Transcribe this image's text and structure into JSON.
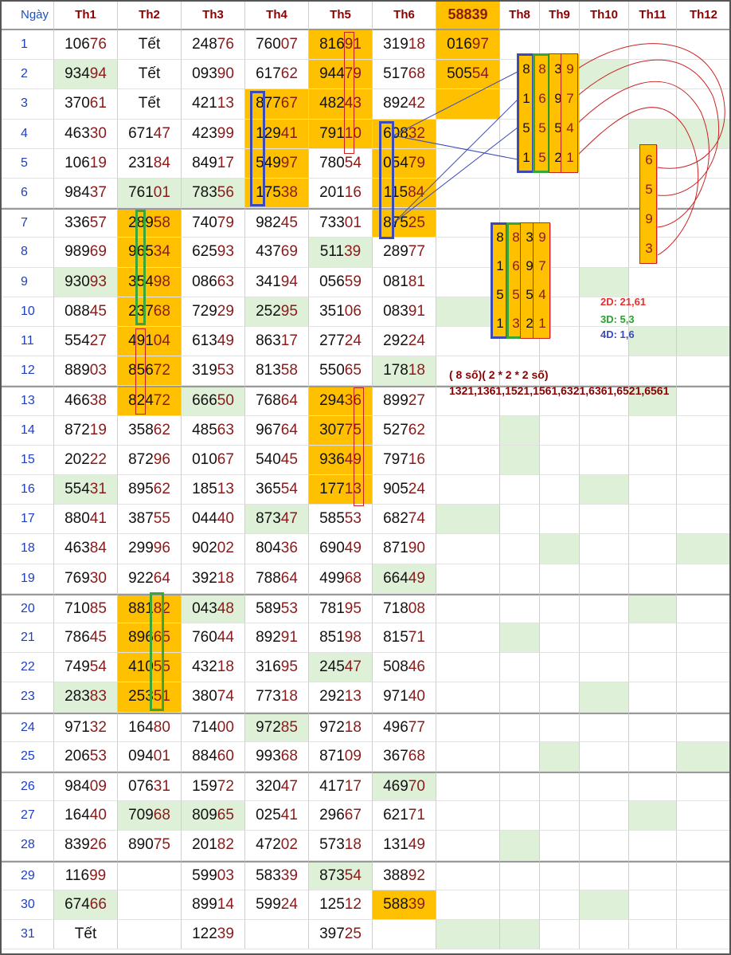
{
  "headers": [
    "Ngày",
    "Th1",
    "Th2",
    "Th3",
    "Th4",
    "Th5",
    "Th6",
    "58839",
    "Th8",
    "Th9",
    "Th10",
    "Th11",
    "Th12"
  ],
  "rows": [
    {
      "day": "1",
      "v": [
        "10676",
        "Tết",
        "24876",
        "76007",
        "81691",
        "31918",
        "01697",
        "",
        "",
        "",
        "",
        ""
      ]
    },
    {
      "day": "2",
      "v": [
        "93494",
        "Tết",
        "09390",
        "61762",
        "94479",
        "51768",
        "50554",
        "",
        "",
        "",
        "",
        ""
      ]
    },
    {
      "day": "3",
      "v": [
        "37061",
        "Tết",
        "42113",
        "87767",
        "48243",
        "89242",
        "",
        "",
        "",
        "",
        "",
        ""
      ]
    },
    {
      "day": "4",
      "v": [
        "46330",
        "67147",
        "42399",
        "12941",
        "79110",
        "60832",
        "",
        "",
        "",
        "",
        "",
        ""
      ]
    },
    {
      "day": "5",
      "v": [
        "10619",
        "23184",
        "84917",
        "54997",
        "78054",
        "05479",
        "",
        "",
        "",
        "",
        "",
        ""
      ]
    },
    {
      "day": "6",
      "v": [
        "98437",
        "76101",
        "78356",
        "17538",
        "20116",
        "11584",
        "",
        "",
        "",
        "",
        "",
        ""
      ]
    },
    {
      "day": "7",
      "v": [
        "33657",
        "28958",
        "74079",
        "98245",
        "73301",
        "87525",
        "",
        "",
        "",
        "",
        "",
        ""
      ]
    },
    {
      "day": "8",
      "v": [
        "98969",
        "96534",
        "62593",
        "43769",
        "51139",
        "28977",
        "",
        "",
        "",
        "",
        "",
        ""
      ]
    },
    {
      "day": "9",
      "v": [
        "93093",
        "35498",
        "08663",
        "34194",
        "05659",
        "08181",
        "",
        "",
        "",
        "",
        "",
        ""
      ]
    },
    {
      "day": "10",
      "v": [
        "08845",
        "23768",
        "72929",
        "25295",
        "35106",
        "08391",
        "",
        "",
        "",
        "",
        "",
        ""
      ]
    },
    {
      "day": "11",
      "v": [
        "55427",
        "49104",
        "61349",
        "86317",
        "27724",
        "29224",
        "",
        "",
        "",
        "",
        "",
        ""
      ]
    },
    {
      "day": "12",
      "v": [
        "88903",
        "85672",
        "31953",
        "81358",
        "55065",
        "17818",
        "",
        "",
        "",
        "",
        "",
        ""
      ]
    },
    {
      "day": "13",
      "v": [
        "46638",
        "82472",
        "66650",
        "76864",
        "29436",
        "89927",
        "",
        "",
        "",
        "",
        "",
        ""
      ]
    },
    {
      "day": "14",
      "v": [
        "87219",
        "35862",
        "48563",
        "96764",
        "30775",
        "52762",
        "",
        "",
        "",
        "",
        "",
        ""
      ]
    },
    {
      "day": "15",
      "v": [
        "20222",
        "87296",
        "01067",
        "54045",
        "93649",
        "79716",
        "",
        "",
        "",
        "",
        "",
        ""
      ]
    },
    {
      "day": "16",
      "v": [
        "55431",
        "89562",
        "18513",
        "36554",
        "17713",
        "90524",
        "",
        "",
        "",
        "",
        "",
        ""
      ]
    },
    {
      "day": "17",
      "v": [
        "88041",
        "38755",
        "04440",
        "87347",
        "58553",
        "68274",
        "",
        "",
        "",
        "",
        "",
        ""
      ]
    },
    {
      "day": "18",
      "v": [
        "46384",
        "29996",
        "90202",
        "80436",
        "69049",
        "87190",
        "",
        "",
        "",
        "",
        "",
        ""
      ]
    },
    {
      "day": "19",
      "v": [
        "76930",
        "92264",
        "39218",
        "78864",
        "49968",
        "66449",
        "",
        "",
        "",
        "",
        "",
        ""
      ]
    },
    {
      "day": "20",
      "v": [
        "71085",
        "88182",
        "04348",
        "58953",
        "78195",
        "71808",
        "",
        "",
        "",
        "",
        "",
        ""
      ]
    },
    {
      "day": "21",
      "v": [
        "78645",
        "89665",
        "76044",
        "89291",
        "85198",
        "81571",
        "",
        "",
        "",
        "",
        "",
        ""
      ]
    },
    {
      "day": "22",
      "v": [
        "74954",
        "41055",
        "43218",
        "31695",
        "24547",
        "50846",
        "",
        "",
        "",
        "",
        "",
        ""
      ]
    },
    {
      "day": "23",
      "v": [
        "28383",
        "25351",
        "38074",
        "77318",
        "29213",
        "97140",
        "",
        "",
        "",
        "",
        "",
        ""
      ]
    },
    {
      "day": "24",
      "v": [
        "97132",
        "16480",
        "71400",
        "97285",
        "97218",
        "49677",
        "",
        "",
        "",
        "",
        "",
        ""
      ]
    },
    {
      "day": "25",
      "v": [
        "20653",
        "09401",
        "88460",
        "99368",
        "87109",
        "36768",
        "",
        "",
        "",
        "",
        "",
        ""
      ]
    },
    {
      "day": "26",
      "v": [
        "98409",
        "07631",
        "15972",
        "32047",
        "41717",
        "46970",
        "",
        "",
        "",
        "",
        "",
        ""
      ]
    },
    {
      "day": "27",
      "v": [
        "16440",
        "70968",
        "80965",
        "02541",
        "29667",
        "62171",
        "",
        "",
        "",
        "",
        "",
        ""
      ]
    },
    {
      "day": "28",
      "v": [
        "83926",
        "89075",
        "20182",
        "47202",
        "57318",
        "13149",
        "",
        "",
        "",
        "",
        "",
        ""
      ]
    },
    {
      "day": "29",
      "v": [
        "11699",
        "",
        "59903",
        "58339",
        "87354",
        "38892",
        "",
        "",
        "",
        "",
        "",
        ""
      ]
    },
    {
      "day": "30",
      "v": [
        "67466",
        "",
        "89914",
        "59924",
        "12512",
        "58839",
        "",
        "",
        "",
        "",
        "",
        ""
      ]
    },
    {
      "day": "31",
      "v": [
        "Tết",
        "",
        "12239",
        "",
        "39725",
        "",
        "",
        "",
        "",
        "",
        "",
        ""
      ]
    }
  ],
  "orange_cells": [
    [
      1,
      5
    ],
    [
      2,
      5
    ],
    [
      3,
      5
    ],
    [
      3,
      4
    ],
    [
      4,
      5
    ],
    [
      4,
      4
    ],
    [
      5,
      4
    ],
    [
      6,
      4
    ],
    [
      4,
      6
    ],
    [
      5,
      6
    ],
    [
      6,
      6
    ],
    [
      7,
      6
    ],
    [
      1,
      7
    ],
    [
      2,
      7
    ],
    [
      3,
      7
    ],
    [
      7,
      2
    ],
    [
      8,
      2
    ],
    [
      9,
      2
    ],
    [
      10,
      2
    ],
    [
      11,
      2
    ],
    [
      12,
      2
    ],
    [
      13,
      2
    ],
    [
      13,
      5
    ],
    [
      14,
      5
    ],
    [
      15,
      5
    ],
    [
      16,
      5
    ],
    [
      20,
      2
    ],
    [
      21,
      2
    ],
    [
      22,
      2
    ],
    [
      23,
      2
    ],
    [
      30,
      6
    ]
  ],
  "green_cells": [
    [
      2,
      1
    ],
    [
      6,
      2
    ],
    [
      6,
      3
    ],
    [
      8,
      5
    ],
    [
      9,
      1
    ],
    [
      10,
      4
    ],
    [
      12,
      6
    ],
    [
      13,
      3
    ],
    [
      16,
      1
    ],
    [
      17,
      4
    ],
    [
      19,
      6
    ],
    [
      20,
      3
    ],
    [
      22,
      5
    ],
    [
      23,
      1
    ],
    [
      24,
      4
    ],
    [
      26,
      6
    ],
    [
      27,
      2
    ],
    [
      27,
      3
    ],
    [
      29,
      5
    ],
    [
      30,
      1
    ],
    [
      10,
      7
    ],
    [
      17,
      7
    ],
    [
      31,
      7
    ],
    [
      14,
      8
    ],
    [
      15,
      8
    ],
    [
      21,
      8
    ],
    [
      28,
      8
    ],
    [
      31,
      8
    ],
    [
      18,
      9
    ],
    [
      25,
      9
    ],
    [
      2,
      10
    ],
    [
      9,
      10
    ],
    [
      16,
      10
    ],
    [
      23,
      10
    ],
    [
      30,
      10
    ],
    [
      4,
      11
    ],
    [
      11,
      11
    ],
    [
      13,
      11
    ],
    [
      20,
      11
    ],
    [
      27,
      11
    ],
    [
      4,
      12
    ],
    [
      11,
      12
    ],
    [
      18,
      12
    ],
    [
      25,
      12
    ]
  ],
  "mini_groups": {
    "top_th8": [
      "8",
      "1",
      "5",
      "1"
    ],
    "top_th8b": [
      "8",
      "6",
      "5",
      "5"
    ],
    "top_th9a": [
      "3",
      "9",
      "5",
      "2"
    ],
    "top_th9b": [
      "9",
      "7",
      "4",
      "1"
    ],
    "th11": [
      "6",
      "5",
      "9",
      "3"
    ],
    "mid_a": [
      "8",
      "1",
      "5",
      "1"
    ],
    "mid_b": [
      "8",
      "6",
      "5",
      "3"
    ],
    "mid_c": [
      "3",
      "9",
      "5",
      "2"
    ],
    "mid_d": [
      "9",
      "7",
      "4",
      "1"
    ]
  },
  "legend": {
    "d2": "2D: 21,61",
    "d3": "3D: 5,3",
    "d4": "4D: 1,6",
    "combo_title": "( 8 số)( 2 * 2 * 2 số)",
    "combo_list": "1321,1361,1521,1561,6321,6361,6521,6561"
  },
  "colors": {
    "orange": "#ffc000",
    "green": "#dff0d8",
    "blue_box": "#3a4bb8",
    "green_box": "#3aa63a",
    "red_box": "#cc2222",
    "legend_2d": "#e53030",
    "legend_3d": "#2ca02c",
    "legend_4d": "#3a4bb8",
    "combo": "#8b0000"
  }
}
